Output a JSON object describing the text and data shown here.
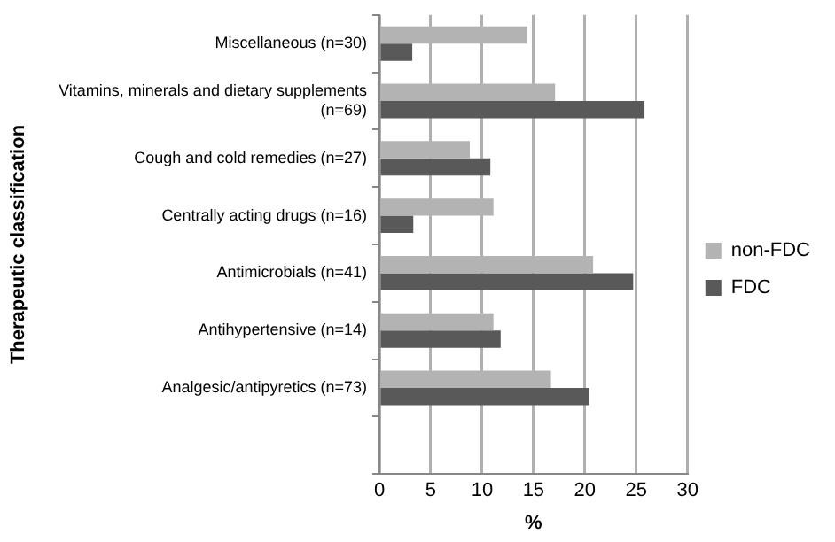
{
  "chart_data": {
    "type": "bar",
    "orientation": "horizontal",
    "xlabel": "%",
    "ylabel": "Therapeutic classification",
    "categories": [
      "Miscellaneous (n=30)",
      "Vitamins, minerals and dietary supplements (n=69)",
      "Cough and cold remedies (n=27)",
      "Centrally acting drugs (n=16)",
      "Antimicrobials (n=41)",
      "Antihypertensive (n=14)",
      "Analgesic/antipyretics (n=73)",
      null
    ],
    "series": [
      {
        "name": "non-FDC",
        "color": "#b3b3b3",
        "values": [
          14.4,
          17.1,
          8.8,
          11.1,
          20.8,
          11.1,
          16.7,
          null
        ]
      },
      {
        "name": "FDC",
        "color": "#595959",
        "values": [
          3.2,
          25.8,
          10.8,
          3.3,
          24.7,
          11.8,
          20.4,
          null
        ]
      }
    ],
    "xlim": [
      0,
      30
    ],
    "xticks": [
      0,
      5,
      10,
      15,
      20,
      25,
      30
    ],
    "grid": "x",
    "legend": "right"
  }
}
